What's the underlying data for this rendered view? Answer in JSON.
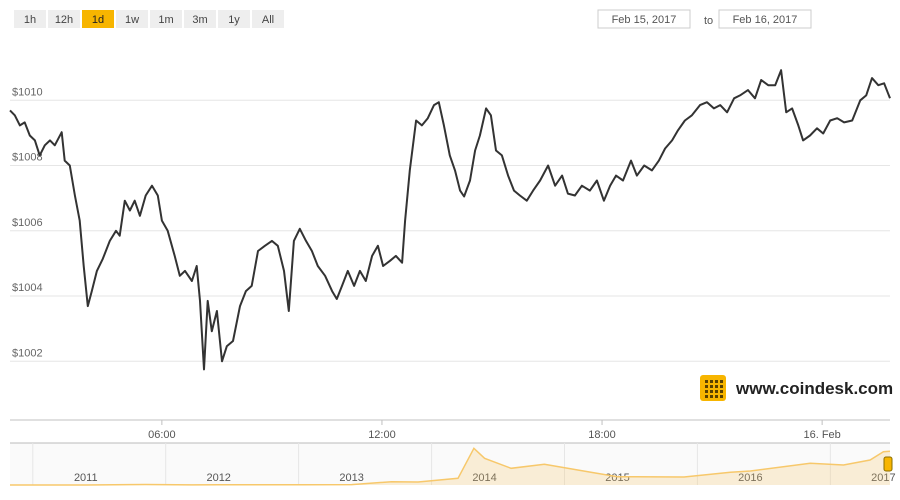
{
  "range_selector": {
    "buttons": [
      "1h",
      "12h",
      "1d",
      "1w",
      "1m",
      "3m",
      "1y",
      "All"
    ],
    "selected": 2
  },
  "date_range": {
    "from": "Feb 15, 2017",
    "to_label": "to",
    "to": "Feb 16, 2017"
  },
  "watermark": "www.coindesk.com",
  "chart_data": [
    {
      "type": "line",
      "color": "#333333",
      "grid": true,
      "xlim": [
        1.86,
        25.85
      ],
      "xticks": [
        {
          "value": 6,
          "label": "06:00"
        },
        {
          "value": 12,
          "label": "12:00"
        },
        {
          "value": 18,
          "label": "18:00"
        },
        {
          "value": 24,
          "label": "16. Feb"
        }
      ],
      "ylim": [
        1000.2,
        1012
      ],
      "yticks": [
        {
          "value": 1002,
          "label": "$1002"
        },
        {
          "value": 1004,
          "label": "$1004"
        },
        {
          "value": 1006,
          "label": "$1006"
        },
        {
          "value": 1008,
          "label": "$1008"
        },
        {
          "value": 1010,
          "label": "$1010"
        }
      ],
      "x": [
        1.86,
        1.99,
        2.13,
        2.26,
        2.4,
        2.54,
        2.67,
        2.81,
        2.95,
        3.08,
        3.27,
        3.35,
        3.49,
        3.63,
        3.76,
        3.87,
        3.98,
        4.09,
        4.23,
        4.39,
        4.58,
        4.75,
        4.85,
        4.99,
        5.13,
        5.26,
        5.4,
        5.56,
        5.73,
        5.89,
        6.0,
        6.16,
        6.35,
        6.49,
        6.63,
        6.82,
        6.95,
        7.04,
        7.15,
        7.25,
        7.36,
        7.5,
        7.64,
        7.77,
        7.94,
        8.13,
        8.29,
        8.45,
        8.62,
        8.81,
        9.0,
        9.16,
        9.33,
        9.46,
        9.6,
        9.76,
        9.93,
        10.09,
        10.25,
        10.45,
        10.64,
        10.77,
        10.91,
        11.07,
        11.24,
        11.4,
        11.56,
        11.73,
        11.89,
        12.03,
        12.22,
        12.38,
        12.55,
        12.63,
        12.76,
        12.93,
        13.09,
        13.25,
        13.42,
        13.55,
        13.69,
        13.85,
        13.99,
        14.13,
        14.24,
        14.4,
        14.54,
        14.67,
        14.84,
        14.97,
        15.11,
        15.27,
        15.44,
        15.6,
        15.76,
        15.95,
        16.12,
        16.31,
        16.53,
        16.72,
        16.91,
        17.07,
        17.26,
        17.45,
        17.67,
        17.86,
        18.05,
        18.22,
        18.38,
        18.57,
        18.79,
        18.95,
        19.15,
        19.36,
        19.55,
        19.72,
        19.91,
        20.07,
        20.26,
        20.45,
        20.67,
        20.86,
        21.05,
        21.22,
        21.41,
        21.6,
        21.76,
        21.98,
        22.17,
        22.34,
        22.53,
        22.72,
        22.88,
        23.02,
        23.18,
        23.35,
        23.48,
        23.67,
        23.86,
        24.03,
        24.22,
        24.41,
        24.6,
        24.82,
        25.04,
        25.2,
        25.36,
        25.53,
        25.69,
        25.85
      ],
      "values": [
        1009.69,
        1009.54,
        1009.23,
        1009.32,
        1008.92,
        1008.77,
        1008.31,
        1008.62,
        1008.77,
        1008.62,
        1009.02,
        1008.15,
        1008.0,
        1007.08,
        1006.31,
        1004.92,
        1003.69,
        1004.15,
        1004.77,
        1005.14,
        1005.69,
        1006.0,
        1005.85,
        1006.92,
        1006.62,
        1006.92,
        1006.46,
        1007.08,
        1007.38,
        1007.08,
        1006.31,
        1006.0,
        1005.23,
        1004.62,
        1004.77,
        1004.46,
        1004.92,
        1003.85,
        1001.75,
        1003.85,
        1002.92,
        1003.54,
        1002.0,
        1002.46,
        1002.62,
        1003.69,
        1004.15,
        1004.31,
        1005.38,
        1005.54,
        1005.69,
        1005.54,
        1004.77,
        1003.54,
        1005.69,
        1006.06,
        1005.69,
        1005.38,
        1004.92,
        1004.62,
        1004.15,
        1003.91,
        1004.31,
        1004.77,
        1004.31,
        1004.77,
        1004.46,
        1005.23,
        1005.54,
        1004.92,
        1005.08,
        1005.23,
        1005.02,
        1006.31,
        1007.85,
        1009.38,
        1009.23,
        1009.45,
        1009.85,
        1009.94,
        1009.23,
        1008.31,
        1007.85,
        1007.23,
        1007.05,
        1007.54,
        1008.46,
        1008.92,
        1009.75,
        1009.54,
        1008.46,
        1008.31,
        1007.69,
        1007.23,
        1007.08,
        1006.92,
        1007.23,
        1007.54,
        1008.0,
        1007.38,
        1007.69,
        1007.14,
        1007.08,
        1007.38,
        1007.23,
        1007.54,
        1006.92,
        1007.38,
        1007.69,
        1007.54,
        1008.15,
        1007.69,
        1008.0,
        1007.85,
        1008.15,
        1008.52,
        1008.77,
        1009.08,
        1009.38,
        1009.54,
        1009.85,
        1009.94,
        1009.75,
        1009.85,
        1009.63,
        1010.06,
        1010.15,
        1010.31,
        1010.06,
        1010.62,
        1010.46,
        1010.46,
        1010.92,
        1009.63,
        1009.75,
        1009.23,
        1008.77,
        1008.92,
        1009.14,
        1008.98,
        1009.38,
        1009.45,
        1009.32,
        1009.38,
        1010.0,
        1010.15,
        1010.68,
        1010.46,
        1010.52,
        1010.06
      ]
    },
    {
      "type": "area",
      "color": "#f7c86b",
      "xlim": [
        2010.43,
        2017.05
      ],
      "xticks": [
        2011,
        2012,
        2013,
        2014,
        2015,
        2016,
        2017
      ],
      "ylim": [
        0,
        1200
      ],
      "x": [
        2010.43,
        2011.0,
        2011.45,
        2011.8,
        2012.0,
        2012.6,
        2013.0,
        2013.3,
        2013.5,
        2013.8,
        2013.92,
        2014.0,
        2014.2,
        2014.45,
        2014.8,
        2015.0,
        2015.5,
        2015.85,
        2016.0,
        2016.45,
        2016.7,
        2016.9,
        2017.0,
        2017.05
      ],
      "values": [
        0.1,
        1,
        15,
        3,
        5,
        10,
        13,
        100,
        90,
        200,
        1100,
        800,
        500,
        620,
        380,
        250,
        240,
        380,
        420,
        650,
        600,
        750,
        1000,
        1010
      ]
    }
  ]
}
